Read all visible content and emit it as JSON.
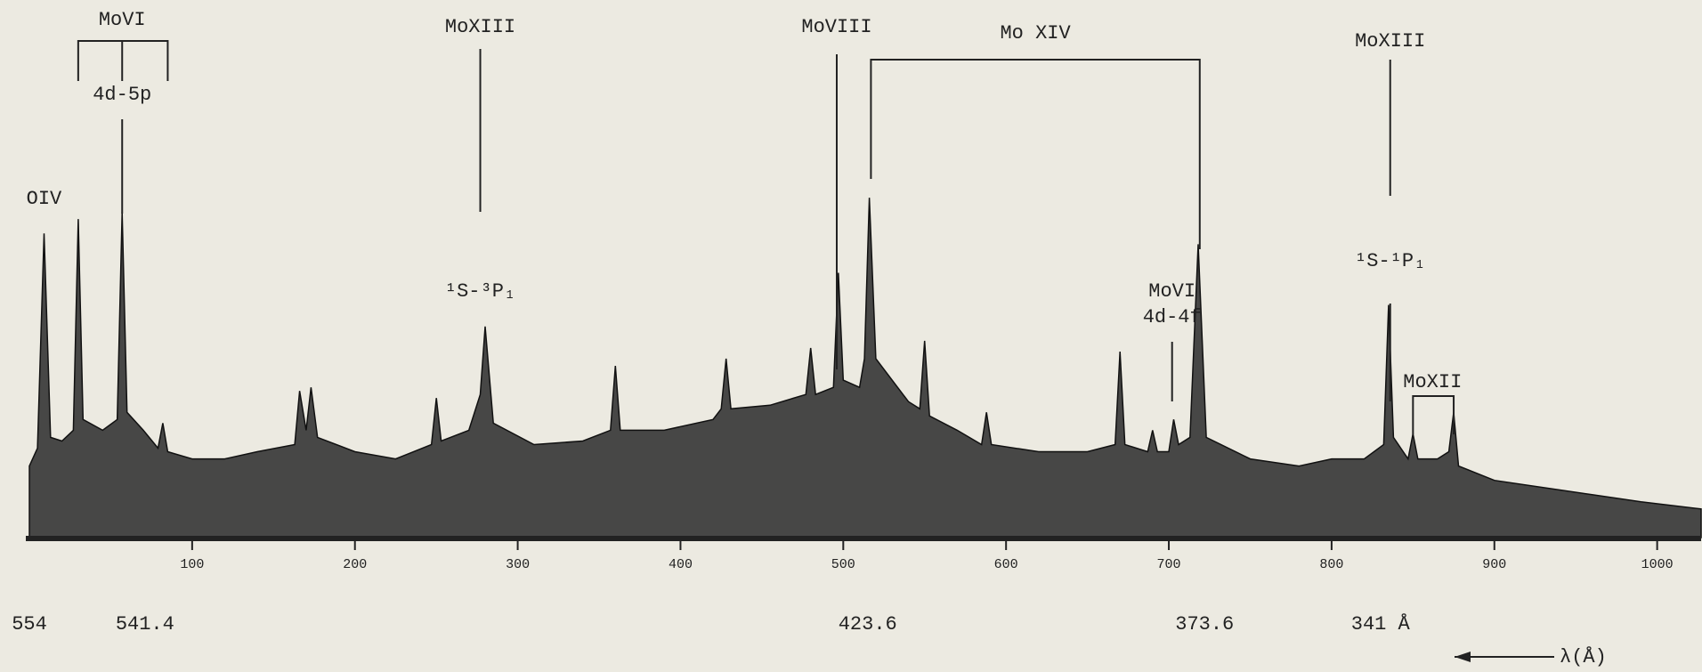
{
  "chart_data": {
    "type": "area",
    "x": [
      0,
      5,
      9,
      13,
      20,
      27,
      30,
      33,
      45,
      54,
      57,
      60,
      70,
      79,
      82,
      85,
      100,
      120,
      140,
      163,
      166,
      170,
      173,
      177,
      200,
      225,
      247,
      250,
      253,
      270,
      277,
      280,
      285,
      310,
      340,
      357,
      360,
      363,
      390,
      420,
      425,
      428,
      431,
      455,
      477,
      480,
      483,
      494,
      497,
      500,
      510,
      513,
      516,
      520,
      540,
      547,
      550,
      553,
      570,
      585,
      588,
      591,
      620,
      650,
      667,
      670,
      673,
      687,
      690,
      693,
      700,
      703,
      706,
      713,
      718,
      723,
      750,
      780,
      800,
      820,
      832,
      835,
      838,
      847,
      850,
      853,
      865,
      872,
      875,
      878,
      900,
      930,
      960,
      990,
      1027
    ],
    "values": [
      20,
      25,
      85,
      28,
      27,
      30,
      89,
      33,
      30,
      33,
      91,
      35,
      30,
      25,
      32,
      24,
      22,
      22,
      24,
      26,
      41,
      30,
      42,
      28,
      24,
      22,
      26,
      39,
      27,
      30,
      40,
      59,
      32,
      26,
      27,
      30,
      48,
      30,
      30,
      33,
      36,
      50,
      36,
      37,
      40,
      53,
      40,
      42,
      74,
      44,
      42,
      50,
      95,
      50,
      38,
      36,
      55,
      34,
      30,
      26,
      35,
      26,
      24,
      24,
      26,
      52,
      26,
      24,
      30,
      24,
      24,
      33,
      26,
      28,
      82,
      28,
      22,
      20,
      22,
      22,
      26,
      65,
      28,
      22,
      29,
      22,
      22,
      24,
      35,
      20,
      16,
      14,
      12,
      10,
      8
    ],
    "color": "#2a2a2a",
    "xlim": [
      0,
      1027
    ],
    "ylim": [
      0,
      100
    ],
    "xticks": [
      100,
      200,
      300,
      400,
      500,
      600,
      700,
      800,
      900,
      1000
    ],
    "wavelength_ticks": [
      {
        "value": 0,
        "label": "554"
      },
      {
        "value": 71,
        "label": "541.4"
      },
      {
        "value": 515,
        "label": "423.6"
      },
      {
        "value": 722,
        "label": "373.6"
      },
      {
        "value": 830,
        "label": "341 Å"
      }
    ],
    "x_label": "λ(Å)",
    "annotations": [
      {
        "x": 9,
        "texts": [
          "OIV"
        ]
      },
      {
        "x": 57,
        "texts": [
          "MoVI",
          "4d-5p"
        ],
        "bracket": [
          30,
          85
        ]
      },
      {
        "x": 277,
        "texts": [
          "MoXIII",
          "¹S-³P₁"
        ]
      },
      {
        "x": 496,
        "texts": [
          "MoVIII"
        ]
      },
      {
        "x": 618,
        "texts": [
          "Mo XIV"
        ],
        "bracket": [
          517,
          719
        ]
      },
      {
        "x": 702,
        "texts": [
          "MoVI",
          "4d-4f"
        ]
      },
      {
        "x": 836,
        "texts": [
          "MoXIII",
          "¹S-¹P₁"
        ]
      },
      {
        "x": 862,
        "texts": [
          "MoXII"
        ],
        "bracket": [
          850,
          875
        ]
      }
    ]
  }
}
